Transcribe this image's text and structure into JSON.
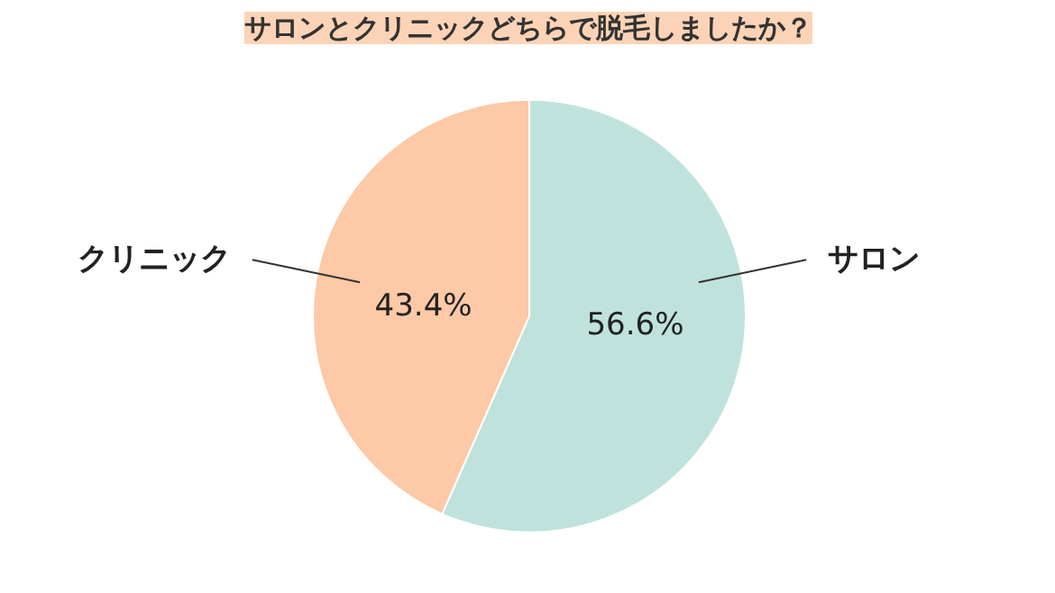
{
  "chart_data": {
    "type": "pie",
    "title": "サロンとクリニックどちらで脱毛しましたか？",
    "categories": [
      "サロン",
      "クリニック"
    ],
    "values": [
      56.6,
      43.4
    ],
    "colors": [
      "#bfe3dc",
      "#fdc9a6"
    ],
    "value_labels": [
      "56.6%",
      "43.4%"
    ]
  }
}
